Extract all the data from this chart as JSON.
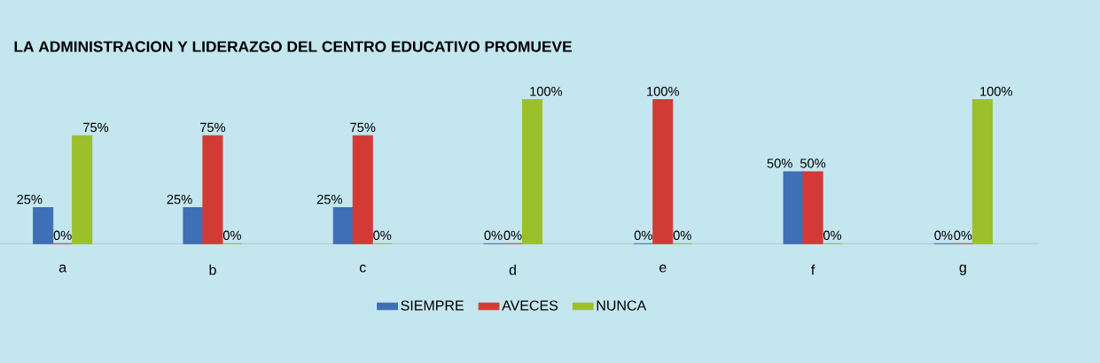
{
  "chart_data": {
    "type": "bar",
    "title": "LA ADMINISTRACION Y LIDERAZGO DEL CENTRO EDUCATIVO PROMUEVE",
    "categories": [
      "a",
      "b",
      "c",
      "d",
      "e",
      "f",
      "g"
    ],
    "series": [
      {
        "name": "SIEMPRE",
        "color": "#3f6fb5",
        "values": [
          25,
          25,
          25,
          0,
          0,
          50,
          0
        ],
        "value_labels": [
          "25%",
          "25%",
          "25%",
          "0%",
          "0%",
          "50%",
          "0%"
        ]
      },
      {
        "name": "AVECES",
        "color": "#d23b35",
        "values": [
          0,
          75,
          75,
          0,
          100,
          50,
          0
        ],
        "value_labels": [
          "0%",
          "75%",
          "75%",
          "0%",
          "100%",
          "50%",
          "0%"
        ]
      },
      {
        "name": "NUNCA",
        "color": "#9cbf2c",
        "values": [
          75,
          0,
          0,
          100,
          0,
          0,
          100
        ],
        "value_labels": [
          "75%",
          "0%",
          "0%",
          "100%",
          "0%",
          "0%",
          "100%"
        ]
      }
    ],
    "legend": "bottom"
  }
}
